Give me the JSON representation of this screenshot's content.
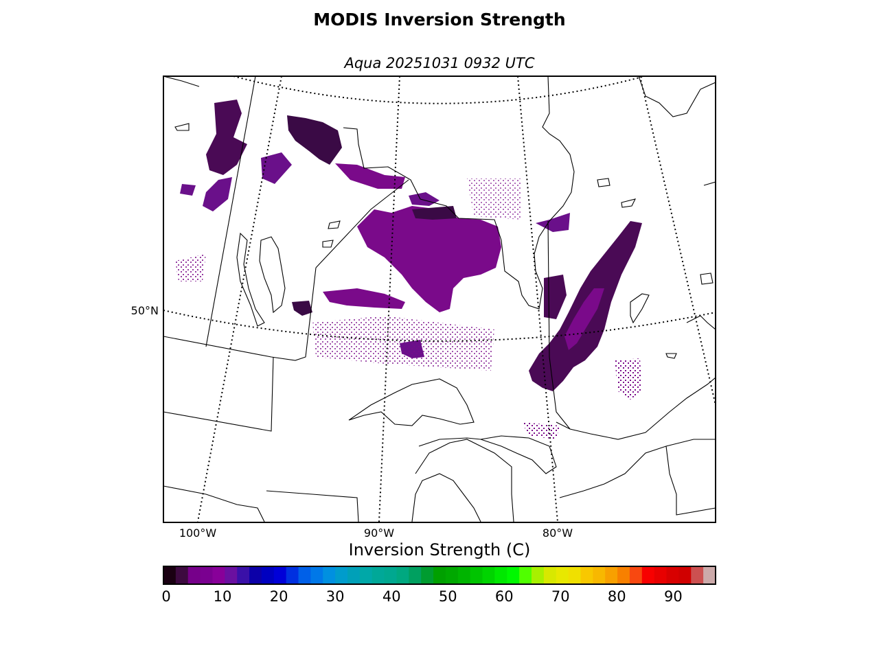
{
  "title": "MODIS Inversion Strength",
  "subtitle": "Aqua 20251031 0932 UTC",
  "map": {
    "lat_labels": [
      {
        "text": "50°N"
      }
    ],
    "lon_labels": [
      {
        "text": "100°W"
      },
      {
        "text": "90°W"
      },
      {
        "text": "80°W"
      }
    ],
    "data_color_low": "#3a0a4a",
    "data_color_high": "#7a0a8a"
  },
  "colorbar": {
    "label": "Inversion Strength (C)",
    "ticks": [
      "0",
      "10",
      "20",
      "30",
      "40",
      "50",
      "60",
      "70",
      "80",
      "90"
    ],
    "colors": [
      "#1a0012",
      "#3d0a40",
      "#76008a",
      "#7a0090",
      "#880099",
      "#6a10a0",
      "#3a10a8",
      "#0c00a8",
      "#0000c0",
      "#0000d8",
      "#0030e0",
      "#0060e8",
      "#0078e8",
      "#0090e0",
      "#009ccc",
      "#00a0b8",
      "#00a8a8",
      "#00a898",
      "#00a890",
      "#00a880",
      "#00a060",
      "#009c30",
      "#00a000",
      "#00a800",
      "#00b400",
      "#00c400",
      "#00d400",
      "#00e800",
      "#00f800",
      "#50ff00",
      "#a8f000",
      "#d8e800",
      "#e8e800",
      "#f0e000",
      "#f8c800",
      "#f8b800",
      "#f8a000",
      "#f88000",
      "#f84810",
      "#f80000",
      "#e80000",
      "#d80000",
      "#d00000",
      "#cc5050",
      "#ccaaaa"
    ]
  }
}
